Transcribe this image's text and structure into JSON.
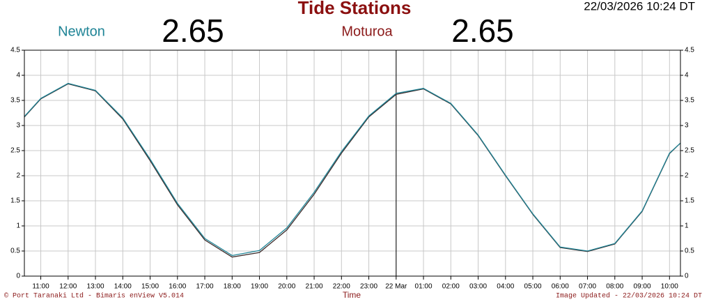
{
  "chart_data": {
    "type": "line",
    "title": "Tide Stations",
    "timestamp": "22/03/2026 10:24 DT",
    "x_label": "Time",
    "x": [
      -13.6,
      -13,
      -12,
      -11,
      -10,
      -9,
      -8,
      -7,
      -6,
      -5,
      -4,
      -3,
      -2,
      -1,
      0,
      1,
      2,
      3,
      4,
      5,
      6,
      7,
      8,
      9,
      10,
      10.4
    ],
    "series": [
      {
        "name": "Newton",
        "color": "#1f8496",
        "current": 2.65,
        "values": [
          3.18,
          3.54,
          3.84,
          3.7,
          3.15,
          2.33,
          1.45,
          0.75,
          0.41,
          0.51,
          0.96,
          1.67,
          2.48,
          3.19,
          3.64,
          3.74,
          3.44,
          2.81,
          2.01,
          1.24,
          0.58,
          0.5,
          0.65,
          1.3,
          2.45,
          2.65
        ]
      },
      {
        "name": "Moturoa",
        "color": "#3b2b2b",
        "current": 2.65,
        "values": [
          3.17,
          3.53,
          3.83,
          3.69,
          3.13,
          2.3,
          1.42,
          0.72,
          0.38,
          0.47,
          0.92,
          1.63,
          2.45,
          3.17,
          3.62,
          3.73,
          3.43,
          2.8,
          2.0,
          1.23,
          0.57,
          0.49,
          0.64,
          1.29,
          2.44,
          2.65
        ]
      }
    ],
    "name_colors": [
      "#1f8496",
      "#8b1a1a"
    ],
    "xlim": [
      -13.6,
      10.4
    ],
    "xticks": [
      {
        "value": -13,
        "label": "11:00"
      },
      {
        "value": -12,
        "label": "12:00"
      },
      {
        "value": -11,
        "label": "13:00"
      },
      {
        "value": -10,
        "label": "14:00"
      },
      {
        "value": -9,
        "label": "15:00"
      },
      {
        "value": -8,
        "label": "16:00"
      },
      {
        "value": -7,
        "label": "17:00"
      },
      {
        "value": -6,
        "label": "18:00"
      },
      {
        "value": -5,
        "label": "19:00"
      },
      {
        "value": -4,
        "label": "20:00"
      },
      {
        "value": -3,
        "label": "21:00"
      },
      {
        "value": -2,
        "label": "22:00"
      },
      {
        "value": -1,
        "label": "23:00"
      },
      {
        "value": 0,
        "label": "22 Mar"
      },
      {
        "value": 1,
        "label": "01:00"
      },
      {
        "value": 2,
        "label": "02:00"
      },
      {
        "value": 3,
        "label": "03:00"
      },
      {
        "value": 4,
        "label": "04:00"
      },
      {
        "value": 5,
        "label": "05:00"
      },
      {
        "value": 6,
        "label": "06:00"
      },
      {
        "value": 7,
        "label": "07:00"
      },
      {
        "value": 8,
        "label": "08:00"
      },
      {
        "value": 9,
        "label": "09:00"
      },
      {
        "value": 10,
        "label": "10:00"
      }
    ],
    "ylim": [
      0,
      4.5
    ],
    "yticks": [
      0,
      0.5,
      1,
      1.5,
      2,
      2.5,
      3,
      3.5,
      4,
      4.5
    ],
    "grid": true,
    "day_marker": 0,
    "footer": {
      "copyright": "© Port Taranaki Ltd - Bimaris enView V5.014",
      "updated": "Image Updated - 22/03/2026 10:24 DT"
    }
  }
}
